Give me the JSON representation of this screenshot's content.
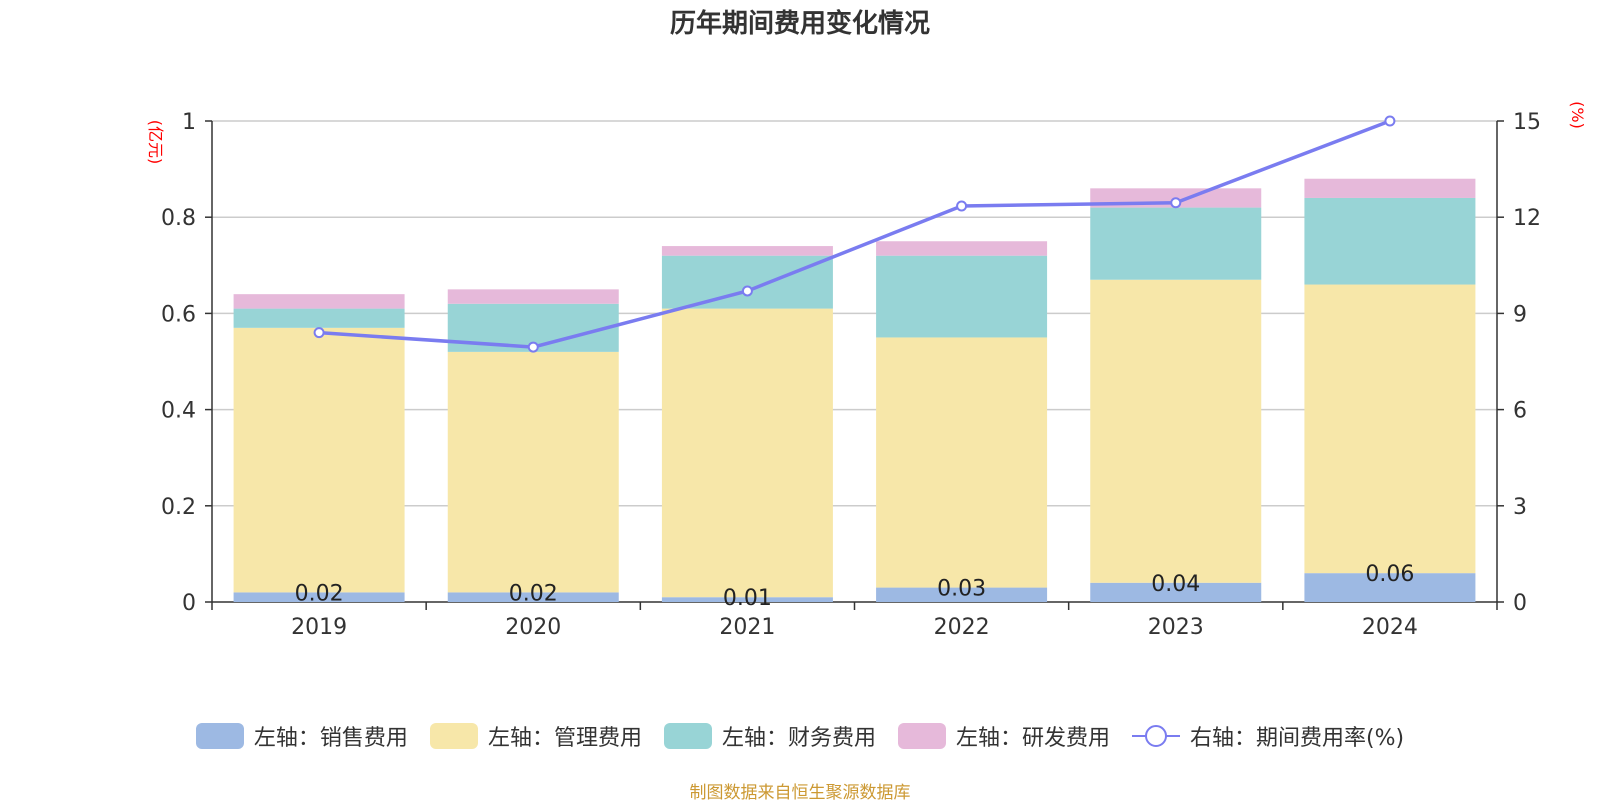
{
  "chart_data": {
    "type": "bar",
    "stacked": true,
    "title": "历年期间费用变化情况",
    "categories": [
      "2019",
      "2020",
      "2021",
      "2022",
      "2023",
      "2024"
    ],
    "left_axis": {
      "unit": "(亿元)",
      "ylim": [
        0,
        1
      ],
      "ticks": [
        "0",
        "0.2",
        "0.4",
        "0.6",
        "0.8",
        "1"
      ]
    },
    "right_axis": {
      "unit": "(%)",
      "ylim": [
        0,
        15
      ],
      "ticks": [
        "0",
        "3",
        "6",
        "9",
        "12",
        "15"
      ]
    },
    "series": [
      {
        "name": "左轴：销售费用",
        "axis": "left",
        "color": "#9db9e3",
        "values": [
          0.02,
          0.02,
          0.01,
          0.03,
          0.04,
          0.06
        ],
        "labels": [
          "0.02",
          "0.02",
          "0.01",
          "0.03",
          "0.04",
          "0.06"
        ]
      },
      {
        "name": "左轴：管理费用",
        "axis": "left",
        "color": "#f7e7a9",
        "values": [
          0.55,
          0.5,
          0.6,
          0.52,
          0.63,
          0.6
        ]
      },
      {
        "name": "左轴：财务费用",
        "axis": "left",
        "color": "#98d4d6",
        "values": [
          0.04,
          0.1,
          0.11,
          0.17,
          0.15,
          0.18
        ]
      },
      {
        "name": "左轴：研发费用",
        "axis": "left",
        "color": "#e6b9da",
        "values": [
          0.03,
          0.03,
          0.02,
          0.03,
          0.04,
          0.04
        ]
      },
      {
        "name": "右轴：期间费用率(%)",
        "axis": "right",
        "type": "line",
        "color": "#7a7cf0",
        "values": [
          8.4,
          7.95,
          9.7,
          12.35,
          12.45,
          15.0
        ]
      }
    ],
    "grid": true,
    "legend_position": "bottom"
  },
  "source": "制图数据来自恒生聚源数据库"
}
